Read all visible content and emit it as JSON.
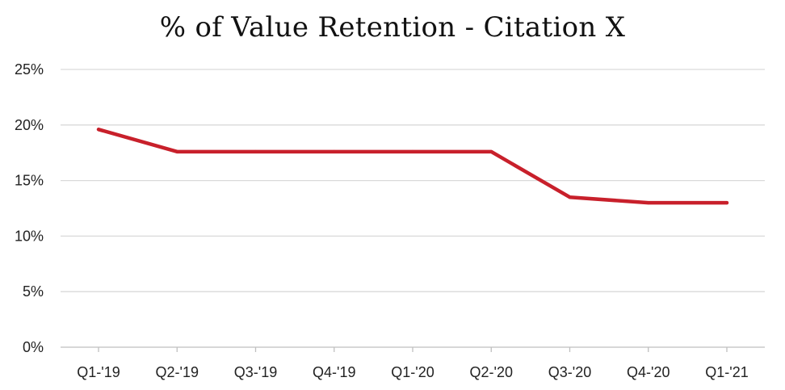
{
  "chart_data": {
    "type": "line",
    "title": "% of Value Retention - Citation X",
    "xlabel": "",
    "ylabel": "",
    "categories": [
      "Q1-'19",
      "Q2-'19",
      "Q3-'19",
      "Q4-'19",
      "Q1-'20",
      "Q2-'20",
      "Q3-'20",
      "Q4-'20",
      "Q1-'21"
    ],
    "series": [
      {
        "values": [
          19.6,
          17.6,
          17.6,
          17.6,
          17.6,
          17.6,
          13.5,
          13.0,
          13.0
        ]
      }
    ],
    "ylim": [
      0,
      25
    ],
    "yticks": [
      "0%",
      "5%",
      "10%",
      "15%",
      "20%",
      "25%"
    ],
    "grid": true,
    "line_color": "#C8202B",
    "grid_color": "#D9D9D9"
  }
}
